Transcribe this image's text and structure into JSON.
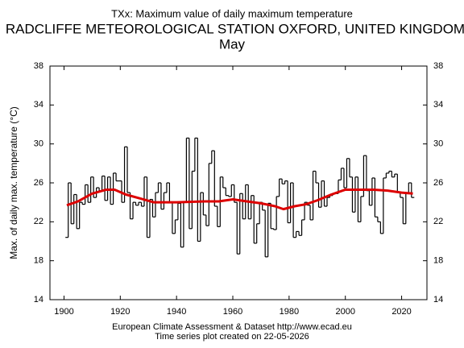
{
  "chart_data": {
    "type": "line",
    "title": "TXx: Maximum value of daily maximum temperature",
    "subtitle": "RADCLIFFE METEOROLOGICAL STATION OXFORD, UNITED KINGDOM",
    "period": "May",
    "ylabel": "Max. of daily max. temperature (°C)",
    "footer": [
      "European Climate Assessment & Dataset  http://www.ecad.eu",
      "Time series plot created on 22-05-2026"
    ],
    "xlim": [
      1895,
      2029
    ],
    "xticks": [
      1900,
      1920,
      1940,
      1960,
      1980,
      2000,
      2020
    ],
    "ylim": [
      14,
      38
    ],
    "yticks": [
      14,
      18,
      22,
      26,
      30,
      34,
      38
    ],
    "series": [
      {
        "color": "#000000",
        "style": "step",
        "x": [
          1901,
          1902,
          1903,
          1904,
          1905,
          1906,
          1907,
          1908,
          1909,
          1910,
          1911,
          1912,
          1913,
          1914,
          1915,
          1916,
          1917,
          1918,
          1919,
          1920,
          1921,
          1922,
          1923,
          1924,
          1925,
          1926,
          1927,
          1928,
          1929,
          1930,
          1931,
          1932,
          1933,
          1934,
          1935,
          1936,
          1937,
          1938,
          1939,
          1940,
          1941,
          1942,
          1943,
          1944,
          1945,
          1946,
          1947,
          1948,
          1949,
          1950,
          1951,
          1952,
          1953,
          1954,
          1955,
          1956,
          1957,
          1958,
          1959,
          1960,
          1961,
          1962,
          1963,
          1964,
          1965,
          1966,
          1967,
          1968,
          1969,
          1970,
          1971,
          1972,
          1973,
          1974,
          1975,
          1976,
          1977,
          1978,
          1979,
          1980,
          1981,
          1982,
          1983,
          1984,
          1985,
          1986,
          1987,
          1988,
          1989,
          1990,
          1991,
          1992,
          1993,
          1994,
          1995,
          1996,
          1997,
          1998,
          1999,
          2000,
          2001,
          2002,
          2003,
          2004,
          2005,
          2006,
          2007,
          2008,
          2009,
          2010,
          2011,
          2012,
          2013,
          2014,
          2015,
          2016,
          2017,
          2018,
          2019,
          2020,
          2021,
          2022,
          2023,
          2024
        ],
        "values": [
          20.4,
          26.0,
          21.8,
          24.8,
          21.3,
          24.0,
          23.8,
          25.8,
          24.0,
          26.6,
          24.5,
          25.5,
          25.2,
          26.7,
          24.2,
          26.6,
          23.8,
          27.0,
          26.2,
          26.2,
          24.0,
          29.7,
          25.0,
          22.3,
          24.0,
          23.7,
          24.0,
          23.6,
          26.6,
          20.4,
          24.3,
          22.5,
          25.0,
          26.0,
          23.3,
          25.0,
          26.0,
          24.0,
          20.8,
          22.2,
          23.9,
          19.4,
          24.0,
          30.6,
          21.3,
          27.2,
          30.6,
          20.0,
          25.0,
          22.7,
          21.6,
          28.0,
          29.3,
          23.6,
          21.5,
          26.6,
          25.5,
          24.7,
          24.6,
          25.8,
          24.0,
          18.7,
          24.9,
          22.3,
          25.8,
          22.3,
          24.7,
          19.8,
          21.8,
          24.0,
          23.2,
          18.4,
          23.9,
          21.3,
          21.2,
          24.6,
          26.4,
          25.9,
          26.2,
          21.9,
          26.0,
          20.4,
          21.0,
          20.6,
          22.2,
          24.0,
          23.7,
          22.2,
          27.2,
          26.0,
          23.5,
          26.2,
          23.6,
          24.5,
          24.7,
          24.9,
          24.9,
          26.3,
          27.5,
          25.5,
          28.5,
          26.6,
          23.0,
          26.6,
          22.0,
          24.6,
          28.8,
          25.2,
          23.7,
          26.5,
          22.5,
          22.0,
          20.8,
          26.5,
          27.0,
          27.2,
          26.6,
          26.9,
          25.0,
          24.5,
          21.8,
          25.0,
          26.0,
          24.5
        ]
      },
      {
        "color": "#dd0000",
        "style": "smooth",
        "x": [
          1901,
          1905,
          1910,
          1915,
          1918,
          1922,
          1927,
          1932,
          1940,
          1950,
          1955,
          1960,
          1965,
          1970,
          1975,
          1978,
          1982,
          1986,
          1990,
          1995,
          2000,
          2005,
          2010,
          2015,
          2020,
          2024
        ],
        "values": [
          23.7,
          24.1,
          24.9,
          25.3,
          25.3,
          24.8,
          24.4,
          24.0,
          24.0,
          24.1,
          24.1,
          24.3,
          24.1,
          23.9,
          23.6,
          23.3,
          23.6,
          23.8,
          24.2,
          24.8,
          25.3,
          25.3,
          25.3,
          25.2,
          25.0,
          24.9
        ]
      }
    ]
  }
}
